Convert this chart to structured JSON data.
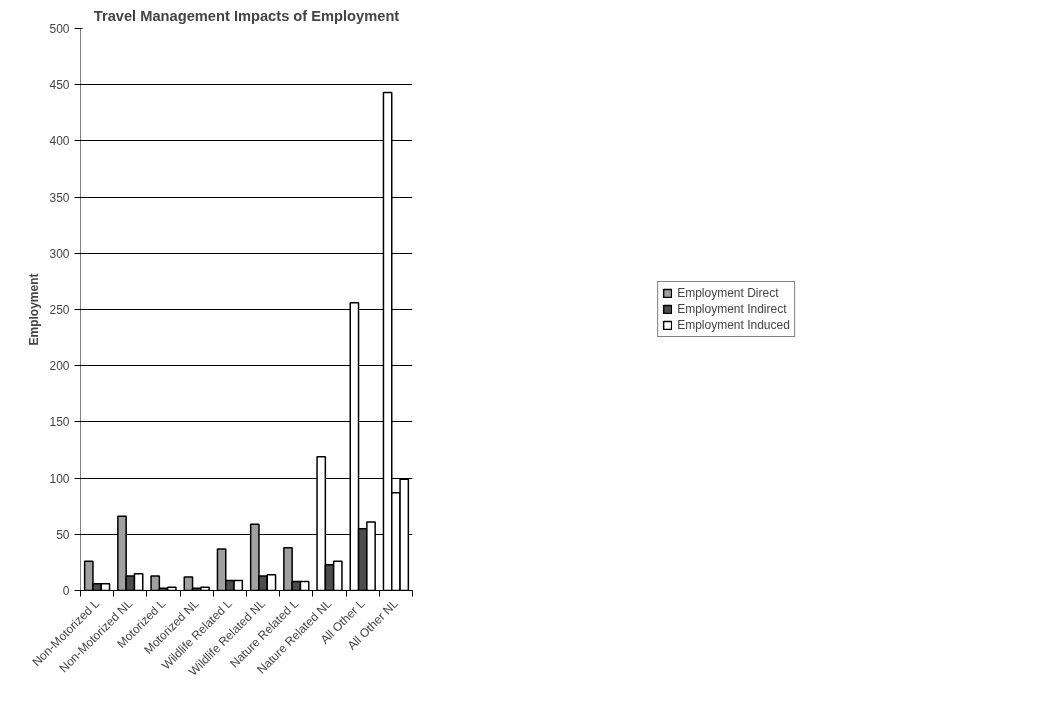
{
  "chart_data": {
    "type": "bar",
    "title": "Travel Management Impacts of Employment",
    "ylabel": "Employment",
    "categories": [
      "Non-Motorized L",
      "Non-Motorized NL",
      "Motorized L",
      "Motorized NL",
      "Wildlife Related L",
      "Wildlife Related NL",
      "Nature Related L",
      "Nature Related NL",
      "All Other L",
      "All Other NL"
    ],
    "series": [
      {
        "name": "Employment Direct",
        "color": "#a0a0a0",
        "colors": [
          "#a0a0a0",
          "#a0a0a0",
          "#a0a0a0",
          "#a0a0a0",
          "#a0a0a0",
          "#a0a0a0",
          "#a0a0a0",
          "#ffffff",
          "#ffffff",
          "#ffffff"
        ],
        "values": [
          26,
          66,
          13,
          12,
          37,
          59,
          38,
          119,
          256,
          443
        ]
      },
      {
        "name": "Employment Indirect",
        "color": "#4d4d4d",
        "colors": [
          "#4d4d4d",
          "#4d4d4d",
          "#4d4d4d",
          "#4d4d4d",
          "#4d4d4d",
          "#4d4d4d",
          "#4d4d4d",
          "#4d4d4d",
          "#4d4d4d",
          "#ffffff"
        ],
        "values": [
          6,
          13,
          2,
          2,
          9,
          13,
          8,
          23,
          55,
          87
        ]
      },
      {
        "name": "Employment Induced",
        "color": "#ffffff",
        "values": [
          6,
          15,
          3,
          3,
          9,
          14,
          8,
          26,
          61,
          99
        ]
      }
    ],
    "ylim": [
      0,
      500
    ],
    "yticks": [
      0,
      50,
      100,
      150,
      200,
      250,
      300,
      350,
      400,
      450,
      500
    ],
    "grid": "y",
    "legend": "right"
  }
}
